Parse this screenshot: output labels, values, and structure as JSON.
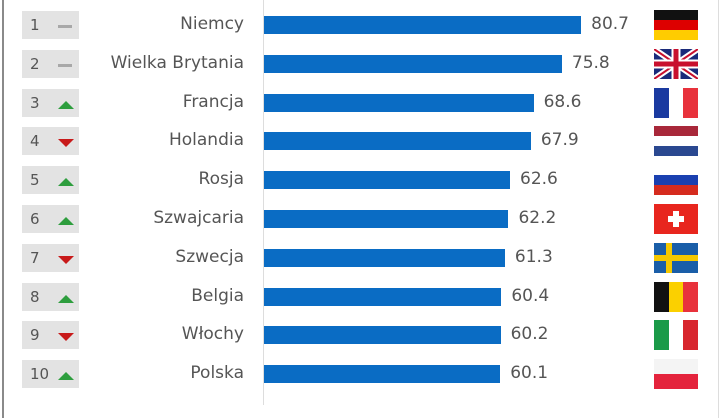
{
  "chart_data": {
    "type": "bar",
    "orientation": "horizontal",
    "categories": [
      "Niemcy",
      "Wielka Brytania",
      "Francja",
      "Holandia",
      "Rosja",
      "Szwajcaria",
      "Szwecja",
      "Belgia",
      "Włochy",
      "Polska"
    ],
    "values": [
      80.7,
      75.8,
      68.6,
      67.9,
      62.6,
      62.2,
      61.3,
      60.4,
      60.2,
      60.1
    ],
    "value_labels": [
      "80.7",
      "75.8",
      "68.6",
      "67.9",
      "62.6",
      "62.2",
      "61.3",
      "60.4",
      "60.2",
      "60.1"
    ],
    "ranks": [
      "1",
      "2",
      "3",
      "4",
      "5",
      "6",
      "7",
      "8",
      "9",
      "10"
    ],
    "trends": [
      "same",
      "same",
      "up",
      "down",
      "up",
      "up",
      "down",
      "up",
      "down",
      "up"
    ],
    "flags": [
      "germany",
      "uk",
      "france",
      "netherlands",
      "russia",
      "switzerland",
      "sweden",
      "belgium",
      "italy",
      "poland"
    ],
    "bar_color": "#0a6cc4",
    "trend_colors": {
      "up": "#2e9e3e",
      "down": "#c81a1a",
      "same": "#a8a8a8"
    },
    "grid": false
  }
}
